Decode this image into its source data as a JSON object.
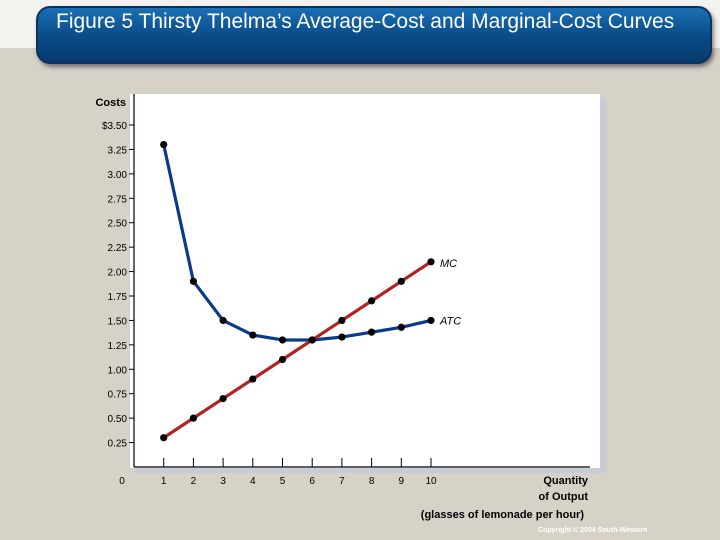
{
  "slide": {
    "title": "Figure 5 Thirsty Thelma’s Average-Cost and Marginal-Cost Curves",
    "footer": "Copyright © 2004  South-Western"
  },
  "colors": {
    "title_bar": "#0a4a86",
    "mc_line": "#b22222",
    "atc_line": "#0a3a8a",
    "points": "#000000"
  },
  "chart_data": {
    "type": "line",
    "ylabel": "Costs",
    "xlabel_lines": [
      "Quantity",
      "of Output",
      "(glasses of lemonade per hour)"
    ],
    "x_ticks": [
      "0",
      "1",
      "2",
      "3",
      "4",
      "5",
      "6",
      "7",
      "8",
      "9",
      "10"
    ],
    "y_ticks": [
      "0.25",
      "0.50",
      "0.75",
      "1.00",
      "1.25",
      "1.50",
      "1.75",
      "2.00",
      "2.25",
      "2.50",
      "2.75",
      "3.00",
      "3.25",
      "$3.50"
    ],
    "y_tick_values": [
      0.25,
      0.5,
      0.75,
      1.0,
      1.25,
      1.5,
      1.75,
      2.0,
      2.25,
      2.5,
      2.75,
      3.0,
      3.25,
      3.5
    ],
    "xlim": [
      0,
      10
    ],
    "ylim": [
      0,
      3.5
    ],
    "series": [
      {
        "name": "MC",
        "x": [
          1,
          2,
          3,
          4,
          5,
          6,
          7,
          8,
          9,
          10
        ],
        "values": [
          0.3,
          0.5,
          0.7,
          0.9,
          1.1,
          1.3,
          1.5,
          1.7,
          1.9,
          2.1
        ],
        "color": "#b22222"
      },
      {
        "name": "ATC",
        "x": [
          1,
          2,
          3,
          4,
          5,
          6,
          7,
          8,
          9,
          10
        ],
        "values": [
          3.3,
          1.9,
          1.5,
          1.35,
          1.3,
          1.3,
          1.33,
          1.38,
          1.43,
          1.5
        ],
        "color": "#0a3a8a"
      }
    ]
  }
}
